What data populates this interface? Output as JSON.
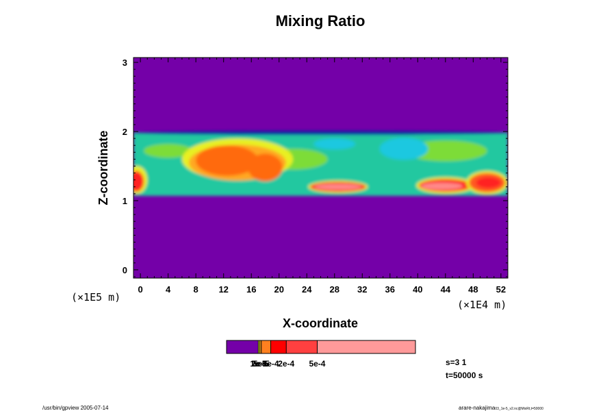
{
  "chart_data": {
    "type": "heatmap",
    "title": "Mixing Ratio",
    "xlabel": "X-coordinate",
    "ylabel": "Z-coordinate",
    "x_scale_note": "(×1E4 m)",
    "z_scale_note": "(×1E5 m)",
    "xlim": [
      -1,
      53
    ],
    "ylim": [
      -0.12,
      3.07
    ],
    "x_ticks": [
      0,
      4,
      8,
      12,
      16,
      20,
      24,
      28,
      32,
      36,
      40,
      44,
      48,
      52
    ],
    "y_ticks": [
      0,
      1,
      2,
      3
    ],
    "background_color": "#7400a8",
    "field_features": [
      {
        "kind": "band",
        "x": [
          -1,
          53
        ],
        "z": [
          1.07,
          1.99
        ],
        "color": "#22c8a0"
      },
      {
        "kind": "blob",
        "cx": 4,
        "cz": 1.72,
        "rx": 3.5,
        "rz": 0.1,
        "color": "#7ddc38"
      },
      {
        "kind": "blob",
        "cx": 22,
        "cz": 1.6,
        "rx": 5,
        "rz": 0.15,
        "color": "#7ddc38"
      },
      {
        "kind": "blob",
        "cx": 44,
        "cz": 1.72,
        "rx": 6,
        "rz": 0.15,
        "color": "#7ddc38"
      },
      {
        "kind": "blob",
        "cx": 28,
        "cz": 1.82,
        "rx": 3,
        "rz": 0.08,
        "color": "#1cc8e0"
      },
      {
        "kind": "blob",
        "cx": 38,
        "cz": 1.75,
        "rx": 3.5,
        "rz": 0.16,
        "color": "#1cc8e0"
      },
      {
        "kind": "blob",
        "cx": 14,
        "cz": 1.6,
        "rx": 8,
        "rz": 0.3,
        "color": "#e8f020"
      },
      {
        "kind": "blob",
        "cx": 14,
        "cz": 1.55,
        "rx": 7,
        "rz": 0.26,
        "color": "#ffa820"
      },
      {
        "kind": "blob",
        "cx": 12.5,
        "cz": 1.58,
        "rx": 4.5,
        "rz": 0.22,
        "color": "#ff6a10"
      },
      {
        "kind": "blob",
        "cx": 18,
        "cz": 1.48,
        "rx": 2.5,
        "rz": 0.2,
        "color": "#ff6a10"
      },
      {
        "kind": "blob",
        "cx": 28.5,
        "cz": 1.2,
        "rx": 4.3,
        "rz": 0.09,
        "color": "#e8f020"
      },
      {
        "kind": "blob",
        "cx": 28.5,
        "cz": 1.2,
        "rx": 4,
        "rz": 0.07,
        "color": "#ff2020"
      },
      {
        "kind": "blob",
        "cx": 28.5,
        "cz": 1.2,
        "rx": 3.4,
        "rz": 0.04,
        "color": "#ff8a8a"
      },
      {
        "kind": "blob",
        "cx": 44,
        "cz": 1.22,
        "rx": 4.2,
        "rz": 0.12,
        "color": "#e8f020"
      },
      {
        "kind": "blob",
        "cx": 44,
        "cz": 1.22,
        "rx": 3.8,
        "rz": 0.09,
        "color": "#ff2020"
      },
      {
        "kind": "blob",
        "cx": 43.5,
        "cz": 1.21,
        "rx": 3,
        "rz": 0.05,
        "color": "#ff8a8a"
      },
      {
        "kind": "blob",
        "cx": 50,
        "cz": 1.26,
        "rx": 3,
        "rz": 0.17,
        "color": "#e8f020"
      },
      {
        "kind": "blob",
        "cx": 50,
        "cz": 1.26,
        "rx": 2.6,
        "rz": 0.14,
        "color": "#ff5a20"
      },
      {
        "kind": "blob",
        "cx": 50.2,
        "cz": 1.26,
        "rx": 1.8,
        "rz": 0.08,
        "color": "#ff2020"
      },
      {
        "kind": "blob",
        "cx": -0.5,
        "cz": 1.3,
        "rx": 1.5,
        "rz": 0.2,
        "color": "#e8f020"
      },
      {
        "kind": "blob",
        "cx": -0.6,
        "cz": 1.28,
        "rx": 1.1,
        "rz": 0.15,
        "color": "#ff2020"
      },
      {
        "kind": "blob",
        "cx": 26,
        "cz": 1.98,
        "rx": 27,
        "rz": 0.03,
        "color": "#0a28a0"
      }
    ],
    "colorbar": {
      "segments": [
        {
          "fraction": 0.168,
          "color": "#7400a8"
        },
        {
          "fraction": 0.008,
          "color": "#e8f020"
        },
        {
          "fraction": 0.008,
          "color": "#ffa820"
        },
        {
          "fraction": 0.05,
          "color": "#ff8020"
        },
        {
          "fraction": 0.082,
          "color": "#ff0000"
        },
        {
          "fraction": 0.164,
          "color": "#ff4040"
        },
        {
          "fraction": 0.52,
          "color": "#ff9a9a"
        }
      ],
      "labels": [
        "1e-5",
        "2e-5",
        "5e-5",
        "1e-4",
        "2e-4",
        "5e-4"
      ]
    },
    "annotations": {
      "s_value": "s=3 1",
      "t_value": "t=50000 s"
    }
  },
  "footer": {
    "left": "/usr/bin/gpview 2005-07-14",
    "right_main": "arare-nakajima",
    "right_sub": "03_1e-5_v2.nc@MixRt,t=50000"
  }
}
